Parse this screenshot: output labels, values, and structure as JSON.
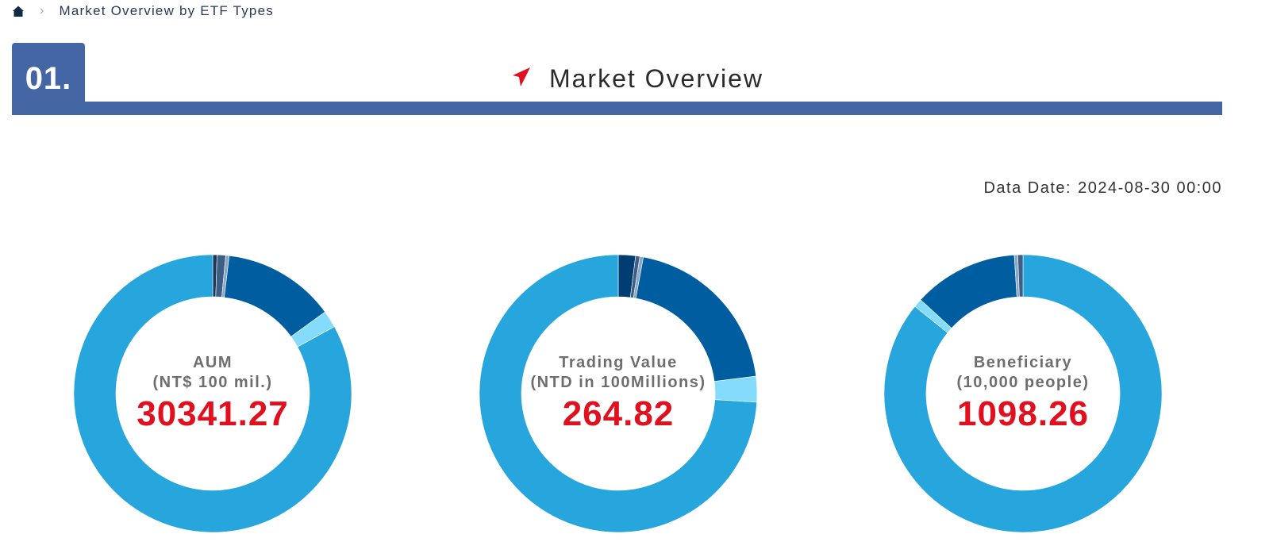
{
  "breadcrumb": {
    "home_icon": "home-icon",
    "separator_icon": "chevron-right-icon",
    "current": "Market Overview by ETF Types"
  },
  "section": {
    "number": "01.",
    "title": "Market Overview",
    "title_icon": "arrow-pointer-icon"
  },
  "data_date": {
    "label": "Data Date:",
    "value": "2024-08-30 00:00"
  },
  "colors": {
    "primary_bar": "#4566a4",
    "value_red": "#e0101e",
    "arrow_red": "#e0101e"
  },
  "donuts": [
    {
      "label_line1": "AUM",
      "label_line2": "(NT$ 100 mil.)",
      "value": "30341.27",
      "segments": [
        {
          "share": 0.005,
          "color": "#1a3a5c"
        },
        {
          "share": 0.01,
          "color": "#3d5f86"
        },
        {
          "share": 0.004,
          "color": "#8aa6c4"
        },
        {
          "share": 0.131,
          "color": "#005ea0"
        },
        {
          "share": 0.02,
          "color": "#85dbfb"
        },
        {
          "share": 0.83,
          "color": "#26a6dc"
        }
      ]
    },
    {
      "label_line1": "Trading Value",
      "label_line2": "(NTD in 100Millions)",
      "value": "264.82",
      "segments": [
        {
          "share": 0.02,
          "color": "#003d73"
        },
        {
          "share": 0.005,
          "color": "#3d5f86"
        },
        {
          "share": 0.004,
          "color": "#8aa6c4"
        },
        {
          "share": 0.201,
          "color": "#005ea0"
        },
        {
          "share": 0.03,
          "color": "#85dbfb"
        },
        {
          "share": 0.74,
          "color": "#26a6dc"
        }
      ]
    },
    {
      "label_line1": "Beneficiary",
      "label_line2": "(10,000 people)",
      "value": "1098.26",
      "segments": [
        {
          "share": 0.858,
          "color": "#26a6dc"
        },
        {
          "share": 0.01,
          "color": "#85dbfb"
        },
        {
          "share": 0.122,
          "color": "#005ea0"
        },
        {
          "share": 0.004,
          "color": "#8aa6c4"
        },
        {
          "share": 0.006,
          "color": "#3d5f86"
        }
      ]
    }
  ]
}
